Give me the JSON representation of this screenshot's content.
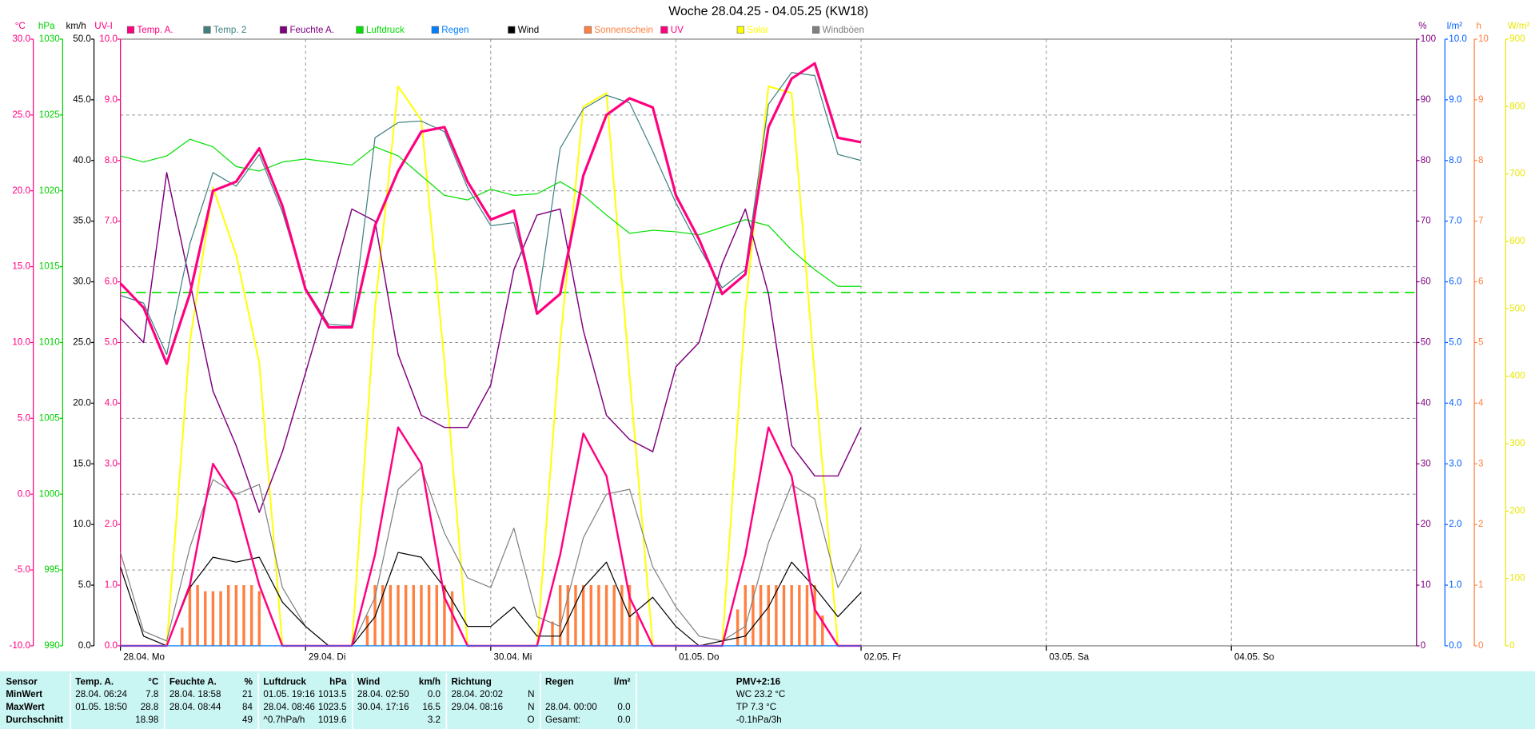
{
  "chart_data": {
    "type": "line",
    "title": "Woche 28.04.25 - 04.05.25 (KW18)",
    "grid": true,
    "xlim": [
      0,
      168
    ],
    "xticks": [
      {
        "value": 0,
        "label": "28.04. Mo"
      },
      {
        "value": 24,
        "label": "29.04. Di"
      },
      {
        "value": 48,
        "label": "30.04. Mi"
      },
      {
        "value": 72,
        "label": "01.05. Do"
      },
      {
        "value": 96,
        "label": "02.05. Fr"
      },
      {
        "value": 120,
        "label": "03.05. Sa"
      },
      {
        "value": 144,
        "label": "04.05. So"
      }
    ],
    "axes": [
      {
        "label": "°C",
        "color": "#ff0080",
        "side": "left",
        "ylim": [
          -10,
          30
        ],
        "yticks": [
          {
            "value": -10,
            "label": "-10.0"
          },
          {
            "value": -5,
            "label": "-5.0"
          },
          {
            "value": 0,
            "label": "0.0"
          },
          {
            "value": 5,
            "label": "5.0"
          },
          {
            "value": 10,
            "label": "10.0"
          },
          {
            "value": 15,
            "label": "15.0"
          },
          {
            "value": 20,
            "label": "20.0"
          },
          {
            "value": 25,
            "label": "25.0"
          },
          {
            "value": 30,
            "label": "30.0"
          }
        ]
      },
      {
        "label": "hPa",
        "color": "#00d000",
        "side": "left",
        "ylim": [
          990,
          1030
        ],
        "yticks": [
          990,
          995,
          1000,
          1005,
          1010,
          1015,
          1020,
          1025,
          1030
        ]
      },
      {
        "label": "km/h",
        "color": "#000000",
        "side": "left",
        "ylim": [
          0,
          50
        ],
        "yticks": [
          {
            "value": 0,
            "label": "0.0"
          },
          {
            "value": 5,
            "label": "5.0"
          },
          {
            "value": 10,
            "label": "10.0"
          },
          {
            "value": 15,
            "label": "15.0"
          },
          {
            "value": 20,
            "label": "20.0"
          },
          {
            "value": 25,
            "label": "25.0"
          },
          {
            "value": 30,
            "label": "30.0"
          },
          {
            "value": 35,
            "label": "35.0"
          },
          {
            "value": 40,
            "label": "40.0"
          },
          {
            "value": 45,
            "label": "45.0"
          },
          {
            "value": 50,
            "label": "50.0"
          }
        ]
      },
      {
        "label": "UV-I",
        "color": "#ff0080",
        "side": "left",
        "ylim": [
          0,
          10
        ],
        "yticks": [
          {
            "value": 0,
            "label": "0.0"
          },
          {
            "value": 1,
            "label": "1.0"
          },
          {
            "value": 2,
            "label": "2.0"
          },
          {
            "value": 3,
            "label": "3.0"
          },
          {
            "value": 4,
            "label": "4.0"
          },
          {
            "value": 5,
            "label": "5.0"
          },
          {
            "value": 6,
            "label": "6.0"
          },
          {
            "value": 7,
            "label": "7.0"
          },
          {
            "value": 8,
            "label": "8.0"
          },
          {
            "value": 9,
            "label": "9.0"
          },
          {
            "value": 10,
            "label": "10.0"
          }
        ]
      },
      {
        "label": "%",
        "color": "#800080",
        "side": "right",
        "ylim": [
          0,
          100
        ],
        "yticks": [
          0,
          10,
          20,
          30,
          40,
          50,
          60,
          70,
          80,
          90,
          100
        ]
      },
      {
        "label": "l/m²",
        "color": "#0060ff",
        "side": "right",
        "ylim": [
          0,
          10
        ],
        "yticks": [
          {
            "value": 0,
            "label": "0.0"
          },
          {
            "value": 1,
            "label": "1.0"
          },
          {
            "value": 2,
            "label": "2.0"
          },
          {
            "value": 3,
            "label": "3.0"
          },
          {
            "value": 4,
            "label": "4.0"
          },
          {
            "value": 5,
            "label": "5.0"
          },
          {
            "value": 6,
            "label": "6.0"
          },
          {
            "value": 7,
            "label": "7.0"
          },
          {
            "value": 8,
            "label": "8.0"
          },
          {
            "value": 9,
            "label": "9.0"
          },
          {
            "value": 10,
            "label": "10.0"
          }
        ]
      },
      {
        "label": "h",
        "color": "#ff8040",
        "side": "right",
        "ylim": [
          0,
          10
        ],
        "yticks": [
          0,
          1,
          2,
          3,
          4,
          5,
          6,
          7,
          8,
          9,
          10
        ]
      },
      {
        "label": "W/m²",
        "color": "#e8e800",
        "side": "right",
        "ylim": [
          0,
          900
        ],
        "yticks": [
          0,
          100,
          200,
          300,
          400,
          500,
          600,
          700,
          800,
          900
        ]
      }
    ],
    "x": [
      0,
      3,
      6,
      9,
      12,
      15,
      18,
      21,
      24,
      27,
      30,
      33,
      36,
      39,
      42,
      45,
      48,
      51,
      54,
      57,
      60,
      63,
      66,
      69,
      72,
      75,
      78,
      81,
      84,
      87,
      90,
      93,
      96
    ],
    "series": [
      {
        "name": "Temp. A.",
        "color": "#ff0080",
        "axis": 0,
        "values": [
          13.9,
          12.3,
          8.6,
          13.2,
          20.0,
          20.6,
          22.8,
          19.0,
          13.5,
          11.0,
          11.0,
          17.7,
          21.3,
          23.9,
          24.2,
          20.6,
          18.1,
          18.7,
          11.9,
          13.2,
          21.0,
          25.0,
          26.1,
          25.5,
          19.7,
          16.8,
          13.2,
          14.5,
          24.2,
          27.4,
          28.4,
          23.5,
          23.2
        ]
      },
      {
        "name": "Temp. 2",
        "color": "#408080",
        "axis": 0,
        "values": [
          13.1,
          12.6,
          9.2,
          16.5,
          21.2,
          20.3,
          22.4,
          18.6,
          13.6,
          11.2,
          11.1,
          23.5,
          24.5,
          24.6,
          23.9,
          20.2,
          17.7,
          17.9,
          12.3,
          22.8,
          25.4,
          26.3,
          25.8,
          22.6,
          19.2,
          16.3,
          13.6,
          14.8,
          25.7,
          27.8,
          27.6,
          22.4,
          22.0
        ]
      },
      {
        "name": "Feuchte A.",
        "color": "#800080",
        "axis": 4,
        "values": [
          54,
          50,
          78,
          60,
          42,
          33,
          22,
          32,
          45,
          58,
          72,
          70,
          48,
          38,
          36,
          36,
          43,
          62,
          71,
          72,
          52,
          38,
          34,
          32,
          46,
          50,
          63,
          72,
          58,
          33,
          28,
          28,
          36
        ]
      },
      {
        "name": "Luftdruck",
        "color": "#00e000",
        "axis": 1,
        "values": [
          1022.3,
          1021.9,
          1022.3,
          1023.4,
          1022.9,
          1021.6,
          1021.3,
          1021.9,
          1022.1,
          1021.9,
          1021.7,
          1022.9,
          1022.3,
          1021.0,
          1019.7,
          1019.4,
          1020.1,
          1019.7,
          1019.8,
          1020.6,
          1019.7,
          1018.4,
          1017.2,
          1017.4,
          1017.3,
          1017.1,
          1017.6,
          1018.1,
          1017.7,
          1016.1,
          1014.8,
          1013.7,
          1013.7
        ]
      },
      {
        "name": "Regen",
        "color": "#0080ff",
        "axis": 5,
        "values": [
          0,
          0,
          0,
          0,
          0,
          0,
          0,
          0,
          0,
          0,
          0,
          0,
          0,
          0,
          0,
          0,
          0,
          0,
          0,
          0,
          0,
          0,
          0,
          0,
          0,
          0,
          0,
          0,
          0,
          0,
          0,
          0,
          0
        ]
      },
      {
        "name": "Wind",
        "color": "#000000",
        "axis": 2,
        "values": [
          6.5,
          0.8,
          0,
          4.8,
          7.3,
          6.9,
          7.3,
          3.6,
          1.6,
          0,
          0,
          2.4,
          7.7,
          7.3,
          4.8,
          1.6,
          1.6,
          3.2,
          0.8,
          0.8,
          4.8,
          6.9,
          2.4,
          4.0,
          1.6,
          0,
          0.4,
          0.8,
          3.2,
          6.9,
          4.8,
          2.4,
          4.4
        ]
      },
      {
        "name": "Sonnenschein",
        "color": "#ff8040",
        "axis": 6,
        "type": "bar",
        "x": [
          8,
          9,
          10,
          11,
          12,
          13,
          14,
          15,
          16,
          17,
          18,
          32,
          33,
          34,
          35,
          36,
          37,
          38,
          39,
          40,
          41,
          42,
          43,
          56,
          57,
          58,
          59,
          60,
          61,
          62,
          63,
          64,
          65,
          66,
          67,
          80,
          81,
          82,
          83,
          84,
          85,
          86,
          87,
          88,
          89,
          90,
          91
        ],
        "values": [
          0.3,
          1,
          1,
          0.9,
          0.9,
          0.9,
          1,
          1,
          1,
          1,
          0.9,
          0.5,
          1,
          1,
          1,
          1,
          1,
          1,
          1,
          1,
          1,
          1,
          0.9,
          0.4,
          1,
          1,
          1,
          1,
          1,
          1,
          1,
          1,
          1,
          1,
          0.5,
          0.6,
          1,
          1,
          1,
          1,
          1,
          1,
          1,
          1,
          1,
          1,
          0.5
        ]
      },
      {
        "name": "UV",
        "color": "#ff0080",
        "axis": 3,
        "values": [
          0,
          0,
          0,
          1.0,
          3.0,
          2.4,
          1.0,
          0,
          0,
          0,
          0,
          1.5,
          3.6,
          3.0,
          0.8,
          0,
          0,
          0,
          0,
          1.5,
          3.5,
          2.8,
          0.8,
          0,
          0,
          0,
          0,
          1.5,
          3.6,
          2.8,
          0.6,
          0,
          0
        ]
      },
      {
        "name": "Solar",
        "color": "#ffff00",
        "axis": 7,
        "values": [
          0,
          0,
          0,
          450,
          680,
          580,
          420,
          0,
          0,
          0,
          0,
          500,
          830,
          780,
          420,
          0,
          0,
          0,
          0,
          450,
          800,
          820,
          400,
          0,
          0,
          0,
          0,
          500,
          830,
          820,
          400,
          0,
          0
        ]
      },
      {
        "name": "Windböen",
        "color": "#808080",
        "axis": 2,
        "values": [
          7.7,
          1.2,
          0.4,
          8.1,
          13.7,
          12.5,
          13.3,
          4.8,
          1.6,
          0,
          0,
          4.0,
          12.9,
          14.7,
          9.3,
          5.6,
          4.8,
          9.7,
          2.4,
          1.6,
          8.9,
          12.5,
          12.9,
          6.5,
          3.2,
          0.8,
          0.4,
          1.6,
          8.5,
          13.3,
          12.1,
          4.8,
          8.1
        ]
      }
    ],
    "reference_lines": [
      {
        "axis": 1,
        "value": 1013.3,
        "color": "#00e000"
      }
    ]
  },
  "stats": {
    "row_labels": [
      "Sensor",
      "MinWert",
      "MaxWert",
      "Durchschnitt"
    ],
    "columns": [
      {
        "name": "Temp. A.",
        "unit": "°C",
        "rows": [
          [
            "28.04. 06:24",
            "7.8"
          ],
          [
            "01.05. 18:50",
            "28.8"
          ],
          [
            null,
            "18.98"
          ]
        ]
      },
      {
        "name": "Feuchte A.",
        "unit": "%",
        "rows": [
          [
            "28.04. 18:58",
            "21"
          ],
          [
            "28.04. 08:44",
            "84"
          ],
          [
            null,
            "49"
          ]
        ]
      },
      {
        "name": "Luftdruck",
        "unit": "hPa",
        "rows": [
          [
            "01.05. 19:16",
            "1013.5"
          ],
          [
            "28.04. 08:46",
            "1023.5"
          ],
          [
            "^0.7hPa/h",
            "1019.6"
          ]
        ]
      },
      {
        "name": "Wind",
        "unit": "km/h",
        "rows": [
          [
            "28.04. 02:50",
            "0.0"
          ],
          [
            "30.04. 17:16",
            "16.5"
          ],
          [
            null,
            "3.2"
          ]
        ]
      },
      {
        "name": "Richtung",
        "unit": null,
        "rows": [
          [
            "28.04. 20:02",
            "N"
          ],
          [
            "29.04. 08:16",
            "N"
          ],
          [
            null,
            "O"
          ]
        ]
      },
      {
        "name": "Regen",
        "unit": "l/m²",
        "rows": [
          [
            null,
            null
          ],
          [
            "28.04. 00:00",
            "0.0"
          ],
          [
            "Gesamt:",
            "0.0"
          ]
        ]
      }
    ],
    "pmv": {
      "title": "PMV+2:16",
      "lines": [
        "WC 23.2 °C",
        "TP 7.3 °C",
        "-0.1hPa/3h"
      ]
    }
  }
}
